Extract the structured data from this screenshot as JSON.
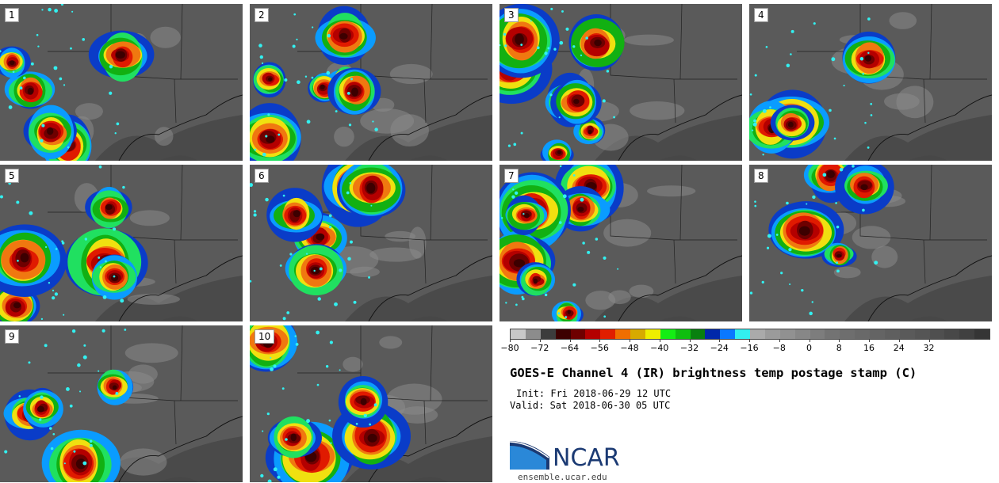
{
  "panels": [
    {
      "label": "1"
    },
    {
      "label": "2"
    },
    {
      "label": "3"
    },
    {
      "label": "4"
    },
    {
      "label": "5"
    },
    {
      "label": "6"
    },
    {
      "label": "7"
    },
    {
      "label": "8"
    },
    {
      "label": "9"
    },
    {
      "label": "10"
    }
  ],
  "colorbar": {
    "colors": [
      "#c8c8c8",
      "#8c8c8c",
      "#3c3c3c",
      "#3c0000",
      "#6e0000",
      "#b40000",
      "#e11e00",
      "#f06e00",
      "#d7aa00",
      "#eeee00",
      "#14ee14",
      "#0ebe0e",
      "#08800f",
      "#0028aa",
      "#0a78ff",
      "#32f0f0",
      "#aaaaaa",
      "#9b9b9b",
      "#919191",
      "#878787",
      "#7d7d7d",
      "#737373",
      "#6e6e6e",
      "#696969",
      "#646464",
      "#5f5f5f",
      "#5a5a5a",
      "#555555",
      "#4f4f4f",
      "#484848",
      "#404040",
      "#353535"
    ],
    "tick_labels": [
      "−80",
      "−72",
      "−64",
      "−56",
      "−48",
      "−40",
      "−32",
      "−24",
      "−16",
      "−8",
      "0",
      "8",
      "16",
      "24",
      "32"
    ]
  },
  "title": "GOES-E Channel 4 (IR) brightness temp postage stamp (C)",
  "init": "Init: Fri 2018-06-29 12 UTC",
  "valid": "Valid: Sat 2018-06-30 05 UTC",
  "logo": {
    "text": "NCAR",
    "url": "ensemble.ucar.edu",
    "colors": {
      "wave_dark": "#1b3a73",
      "wave_light": "#2a88d8"
    }
  }
}
